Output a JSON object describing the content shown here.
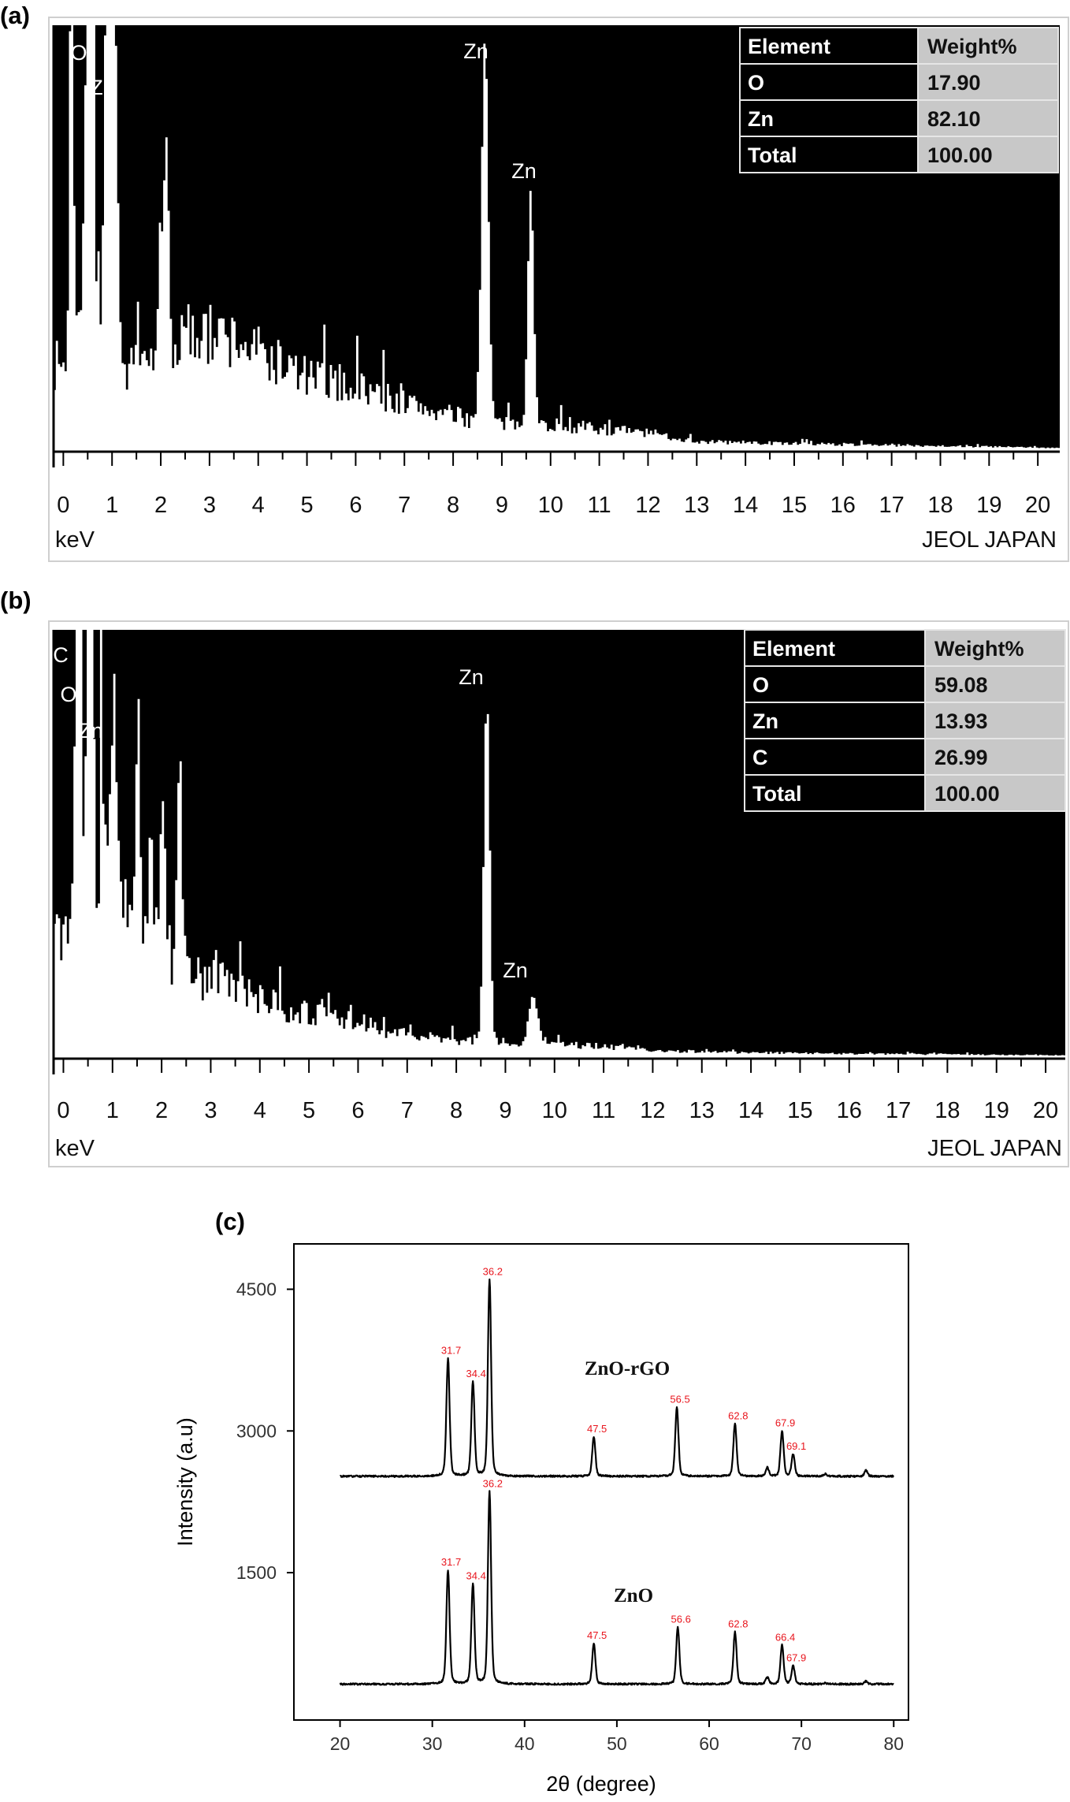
{
  "chart_data": [
    {
      "type": "area",
      "panel_label": "(a)",
      "xlabel": "keV",
      "footer": "JEOL JAPAN",
      "xlim": [
        -0.2,
        20.45
      ],
      "ylim": [
        0,
        100
      ],
      "x_ticks": [
        "0",
        "1",
        "2",
        "3",
        "4",
        "5",
        "6",
        "7",
        "8",
        "9",
        "10",
        "11",
        "12",
        "13",
        "14",
        "15",
        "16",
        "17",
        "18",
        "19",
        "20"
      ],
      "colors": {
        "background": "#000000",
        "spectrum": "#ffffff",
        "table_value_cell": "#c8c8c8"
      },
      "peak_labels": [
        {
          "text": "O",
          "keV": 0.52
        },
        {
          "text": "Zn",
          "keV": 1.0
        },
        {
          "text": "Zn",
          "keV": 8.63
        },
        {
          "text": "Zn",
          "keV": 9.57
        }
      ],
      "peaks": [
        {
          "keV": 0.15,
          "intensity": 150,
          "sigma": 0.03
        },
        {
          "keV": 0.52,
          "intensity": 180,
          "sigma": 0.06
        },
        {
          "keV": 0.95,
          "intensity": 200,
          "sigma": 0.08
        },
        {
          "keV": 2.0,
          "intensity": 25,
          "sigma": 0.05
        },
        {
          "keV": 2.1,
          "intensity": 50,
          "sigma": 0.04
        },
        {
          "keV": 8.63,
          "intensity": 90,
          "sigma": 0.07
        },
        {
          "keV": 9.57,
          "intensity": 57,
          "sigma": 0.06
        }
      ],
      "background": [
        [
          0,
          20
        ],
        [
          0.3,
          40
        ],
        [
          1.2,
          18
        ],
        [
          2,
          22
        ],
        [
          2.5,
          27
        ],
        [
          3.5,
          26
        ],
        [
          5,
          17
        ],
        [
          6,
          15
        ],
        [
          7,
          11
        ],
        [
          8,
          8
        ],
        [
          9,
          6
        ],
        [
          10,
          6
        ],
        [
          11,
          5
        ],
        [
          12,
          4
        ],
        [
          13,
          2
        ],
        [
          15,
          1.5
        ],
        [
          18,
          1
        ],
        [
          20.45,
          0.5
        ]
      ],
      "table": {
        "headers": [
          "Element",
          "Weight%"
        ],
        "rows": [
          [
            "O",
            "17.90"
          ],
          [
            "Zn",
            "82.10"
          ],
          [
            "Total",
            "100.00"
          ]
        ]
      }
    },
    {
      "type": "area",
      "panel_label": "(b)",
      "xlabel": "keV",
      "footer": "JEOL JAPAN",
      "xlim": [
        -0.2,
        20.4
      ],
      "ylim": [
        0,
        100
      ],
      "x_ticks": [
        "0",
        "1",
        "2",
        "3",
        "4",
        "5",
        "6",
        "7",
        "8",
        "9",
        "10",
        "11",
        "12",
        "13",
        "14",
        "15",
        "16",
        "17",
        "18",
        "19",
        "20"
      ],
      "colors": {
        "background": "#000000",
        "spectrum": "#ffffff",
        "table_value_cell": "#c8c8c8"
      },
      "peak_labels": [
        {
          "text": "C",
          "keV": 0.28
        },
        {
          "text": "O",
          "keV": 0.52
        },
        {
          "text": "Zn",
          "keV": 1.0
        },
        {
          "text": "Zn",
          "keV": 8.6
        },
        {
          "text": "Zn",
          "keV": 9.55
        }
      ],
      "peaks": [
        {
          "keV": 0.28,
          "intensity": 150,
          "sigma": 0.05
        },
        {
          "keV": 0.52,
          "intensity": 140,
          "sigma": 0.06
        },
        {
          "keV": 0.75,
          "intensity": 200,
          "sigma": 0.02
        },
        {
          "keV": 1.0,
          "intensity": 45,
          "sigma": 0.1
        },
        {
          "keV": 1.5,
          "intensity": 55,
          "sigma": 0.04
        },
        {
          "keV": 1.75,
          "intensity": 20,
          "sigma": 0.05
        },
        {
          "keV": 2.0,
          "intensity": 37,
          "sigma": 0.05
        },
        {
          "keV": 2.35,
          "intensity": 45,
          "sigma": 0.05
        },
        {
          "keV": 8.6,
          "intensity": 80,
          "sigma": 0.06
        },
        {
          "keV": 9.55,
          "intensity": 11,
          "sigma": 0.09
        }
      ],
      "background": [
        [
          0,
          30
        ],
        [
          1,
          35
        ],
        [
          2,
          25
        ],
        [
          2.7,
          18
        ],
        [
          3,
          20
        ],
        [
          4,
          13
        ],
        [
          5,
          10
        ],
        [
          6,
          8
        ],
        [
          7,
          5
        ],
        [
          8,
          4
        ],
        [
          9,
          3.5
        ],
        [
          10,
          3
        ],
        [
          11,
          2.5
        ],
        [
          12,
          1.5
        ],
        [
          14,
          1
        ],
        [
          20.4,
          0.4
        ]
      ],
      "table": {
        "headers": [
          "Element",
          "Weight%"
        ],
        "rows": [
          [
            "O",
            "59.08"
          ],
          [
            "Zn",
            "13.93"
          ],
          [
            "C",
            "26.99"
          ],
          [
            "Total",
            "100.00"
          ]
        ]
      }
    },
    {
      "type": "line",
      "panel_label": "(c)",
      "xlabel": "2θ (degree)",
      "ylabel": "Intensity (a.u)",
      "xlim": [
        15,
        81.6
      ],
      "ylim": [
        -60,
        4980
      ],
      "x_ticks": [
        20,
        30,
        40,
        50,
        60,
        70,
        80
      ],
      "y_ticks": [
        1500,
        3000,
        4500
      ],
      "grid": false,
      "colors": {
        "line": "#000000",
        "peak_label": "#e8141c"
      },
      "series": [
        {
          "name": "ZnO-rGO",
          "baseline": 2520,
          "peaks": [
            {
              "two_theta": 31.7,
              "intensity": 3765
            },
            {
              "two_theta": 34.4,
              "intensity": 3520
            },
            {
              "two_theta": 36.2,
              "intensity": 4600
            },
            {
              "two_theta": 47.5,
              "intensity": 2935
            },
            {
              "two_theta": 56.5,
              "intensity": 3250
            },
            {
              "two_theta": 62.8,
              "intensity": 3075
            },
            {
              "two_theta": 66.3,
              "intensity": 2610
            },
            {
              "two_theta": 67.9,
              "intensity": 3000
            },
            {
              "two_theta": 69.1,
              "intensity": 2750
            },
            {
              "two_theta": 72.6,
              "intensity": 2545
            },
            {
              "two_theta": 77.0,
              "intensity": 2580
            }
          ],
          "peak_labels": [
            {
              "text": "31.7",
              "at": 31.7
            },
            {
              "text": "34.4",
              "at": 34.4
            },
            {
              "text": "36.2",
              "at": 36.2
            },
            {
              "text": "47.5",
              "at": 47.5
            },
            {
              "text": "56.5",
              "at": 56.5
            },
            {
              "text": "62.8",
              "at": 62.8
            },
            {
              "text": "67.9",
              "at": 67.9
            },
            {
              "text": "69.1",
              "at": 69.1
            }
          ]
        },
        {
          "name": "ZnO",
          "baseline": 320,
          "peaks": [
            {
              "two_theta": 31.7,
              "intensity": 1525
            },
            {
              "two_theta": 34.4,
              "intensity": 1380
            },
            {
              "two_theta": 36.2,
              "intensity": 2355
            },
            {
              "two_theta": 47.5,
              "intensity": 750
            },
            {
              "two_theta": 56.6,
              "intensity": 920
            },
            {
              "two_theta": 62.8,
              "intensity": 870
            },
            {
              "two_theta": 66.3,
              "intensity": 390
            },
            {
              "two_theta": 67.9,
              "intensity": 730
            },
            {
              "two_theta": 69.1,
              "intensity": 510
            },
            {
              "two_theta": 72.6,
              "intensity": 330
            },
            {
              "two_theta": 77.0,
              "intensity": 350
            }
          ],
          "peak_labels": [
            {
              "text": "31.7",
              "at": 31.7
            },
            {
              "text": "34.4",
              "at": 34.4
            },
            {
              "text": "36.2",
              "at": 36.2
            },
            {
              "text": "47.5",
              "at": 47.5
            },
            {
              "text": "56.6",
              "at": 56.6
            },
            {
              "text": "62.8",
              "at": 62.8
            },
            {
              "text": "66.4",
              "at": 67.9
            },
            {
              "text": "67.9",
              "at": 69.1
            }
          ]
        }
      ]
    }
  ]
}
